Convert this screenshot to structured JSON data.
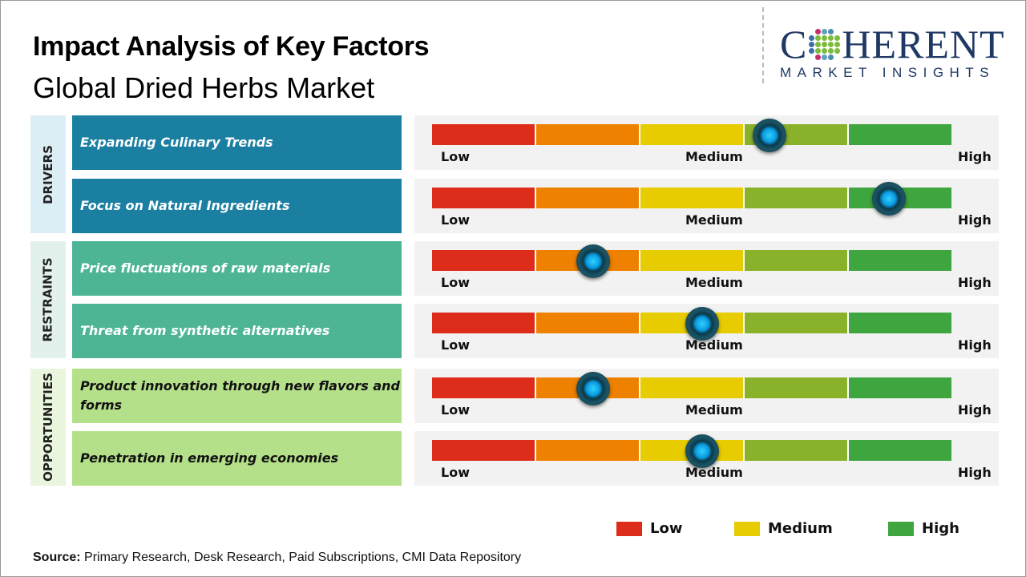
{
  "title": "Impact Analysis of Key Factors",
  "subtitle": "Global Dried Herbs Market",
  "logo": {
    "line1": "COHERENT",
    "line2": "MARKET INSIGHTS"
  },
  "scale_labels": {
    "low": "Low",
    "medium": "Medium",
    "high": "High"
  },
  "scale_colors": [
    "#dd2c1a",
    "#ee8100",
    "#e6cc00",
    "#8ab12a",
    "#3fa53f"
  ],
  "categories": [
    {
      "label": "DRIVERS",
      "side_color": "#dbeef6",
      "box_color": "#1a7fa1",
      "text_color": "#ffffff",
      "factors": [
        {
          "label": "Expanding Culinary Trends",
          "level": 0.65
        },
        {
          "label": "Focus on Natural Ingredients",
          "level": 0.88
        }
      ]
    },
    {
      "label": "RESTRAINTS",
      "side_color": "#e2f1ec",
      "box_color": "#4db595",
      "text_color": "#ffffff",
      "factors": [
        {
          "label": "Price fluctuations of raw materials",
          "level": 0.31
        },
        {
          "label": "Threat from synthetic alternatives",
          "level": 0.52
        }
      ]
    },
    {
      "label": "OPPORTUNITIES",
      "side_color": "#eaf5dd",
      "box_color": "#b5e08a",
      "text_color": "#111111",
      "factors": [
        {
          "label": "Product innovation through new flavors and forms",
          "level": 0.31
        },
        {
          "label": "Penetration in emerging economies",
          "level": 0.52
        }
      ]
    }
  ],
  "legend": [
    {
      "label": "Low",
      "color": "#dd2c1a"
    },
    {
      "label": "Medium",
      "color": "#e6cc00"
    },
    {
      "label": "High",
      "color": "#3fa53f"
    }
  ],
  "source": {
    "prefix": "Source:",
    "text": " Primary Research, Desk Research, Paid Subscriptions, CMI Data Repository"
  }
}
